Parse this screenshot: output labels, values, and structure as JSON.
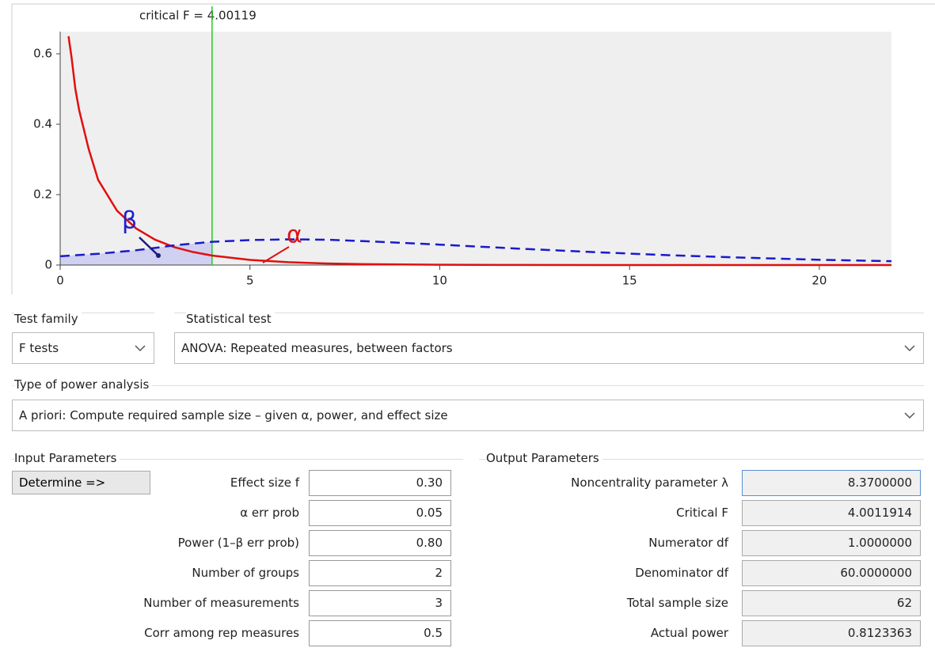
{
  "chart_data": {
    "type": "line",
    "title": "critical F = 4.00119",
    "critical_f": 4.00119,
    "annotations": [
      "β",
      "α"
    ],
    "xlim": [
      0,
      21.9
    ],
    "ylim": [
      0,
      0.663
    ],
    "xticks": [
      0,
      5,
      10,
      15,
      20
    ],
    "yticks": [
      0,
      0.2,
      0.4,
      0.6
    ],
    "series": [
      {
        "color": "#e01010",
        "dash": false,
        "x": [
          0.22,
          0.3,
          0.4,
          0.5,
          0.75,
          1,
          1.5,
          2,
          2.5,
          3,
          3.5,
          4,
          5,
          6,
          7,
          8,
          10,
          12,
          16,
          21.9
        ],
        "values": [
          0.65,
          0.59,
          0.5,
          0.44,
          0.33,
          0.242,
          0.154,
          0.104,
          0.072,
          0.051,
          0.037,
          0.027,
          0.0146,
          0.0081,
          0.0046,
          0.0026,
          0.0008,
          0.0003,
          0,
          0
        ]
      },
      {
        "color": "#1a1acc",
        "dash": true,
        "x": [
          0,
          1,
          2,
          2.6,
          3,
          4,
          5,
          6,
          7,
          8,
          10,
          12,
          14,
          16,
          18,
          20,
          21.9
        ],
        "values": [
          0.025,
          0.032,
          0.042,
          0.05,
          0.056,
          0.066,
          0.071,
          0.073,
          0.072,
          0.068,
          0.058,
          0.047,
          0.037,
          0.028,
          0.021,
          0.015,
          0.011
        ]
      }
    ]
  },
  "form": {
    "test_family": {
      "label": "Test family",
      "value": "F tests"
    },
    "statistical_test": {
      "label": "Statistical test",
      "value": "ANOVA: Repeated measures, between factors"
    },
    "power_analysis": {
      "label": "Type of power analysis",
      "value": "A priori: Compute required sample size – given α, power, and effect size"
    },
    "input": {
      "title": "Input Parameters",
      "button": "Determine =>",
      "rows": [
        [
          "Effect size f",
          "0.30"
        ],
        [
          "α err prob",
          "0.05"
        ],
        [
          "Power (1–β err prob)",
          "0.80"
        ],
        [
          "Number of groups",
          "2"
        ],
        [
          "Number of measurements",
          "3"
        ],
        [
          "Corr among rep measures",
          "0.5"
        ]
      ]
    },
    "output": {
      "title": "Output Parameters",
      "rows": [
        [
          "Noncentrality parameter λ",
          "8.3700000"
        ],
        [
          "Critical F",
          "4.0011914"
        ],
        [
          "Numerator df",
          "1.0000000"
        ],
        [
          "Denominator df",
          "60.0000000"
        ],
        [
          "Total sample size",
          "62"
        ],
        [
          "Actual power",
          "0.8123363"
        ]
      ]
    }
  }
}
